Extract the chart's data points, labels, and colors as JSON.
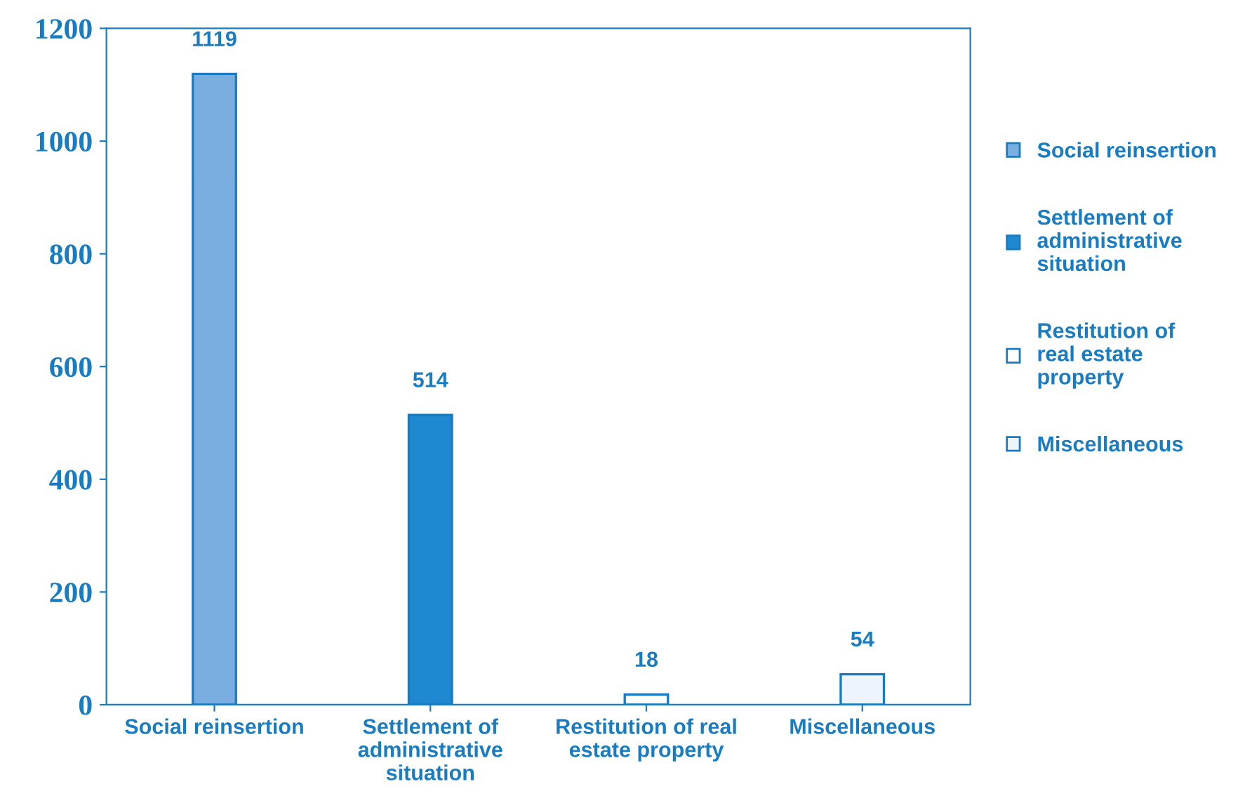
{
  "chart_data": {
    "type": "bar",
    "categories": [
      "Social reinsertion",
      "Settlement of administrative situation",
      "Restitution of real estate property",
      "Miscellaneous"
    ],
    "series": [
      {
        "name": "Social reinsertion",
        "color": "#7aaee0",
        "values": [
          1119,
          null,
          null,
          null
        ]
      },
      {
        "name": "Settlement of administrative situation",
        "color": "#1e88d0",
        "values": [
          null,
          514,
          null,
          null
        ]
      },
      {
        "name": "Restitution of real estate property",
        "color": "#ffffff",
        "values": [
          null,
          null,
          18,
          null
        ]
      },
      {
        "name": "Miscellaneous",
        "color": "#eef4fb",
        "values": [
          null,
          null,
          null,
          54
        ]
      }
    ],
    "ylim": [
      0,
      1200
    ],
    "yticks": [
      0,
      200,
      400,
      600,
      800,
      1000,
      1200
    ],
    "data_labels": true,
    "legend": "right",
    "grid": false
  }
}
